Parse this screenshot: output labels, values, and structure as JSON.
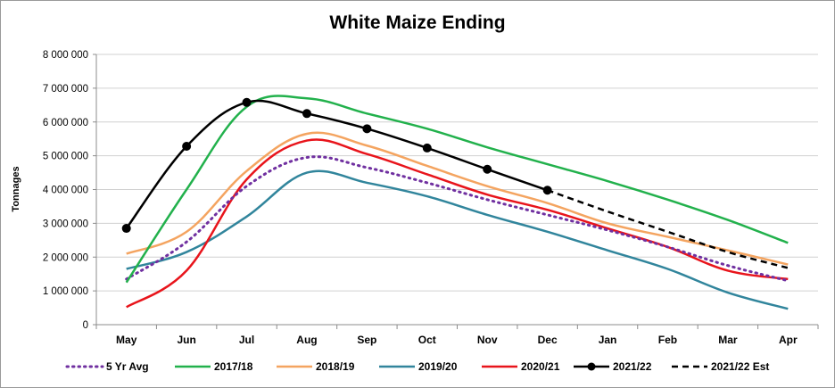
{
  "chart_data": {
    "type": "line",
    "title": "White Maize Ending",
    "xlabel": "",
    "ylabel": "Tonnages",
    "ylim": [
      0,
      8000000
    ],
    "yticks": [
      0,
      1000000,
      2000000,
      3000000,
      4000000,
      5000000,
      6000000,
      7000000,
      8000000
    ],
    "ytick_labels": [
      "0",
      "1 000 000",
      "2 000 000",
      "3 000 000",
      "4 000 000",
      "5 000 000",
      "6 000 000",
      "7 000 000",
      "8 000 000"
    ],
    "categories": [
      "May",
      "Jun",
      "Jul",
      "Aug",
      "Sep",
      "Oct",
      "Nov",
      "Dec",
      "Jan",
      "Feb",
      "Mar",
      "Apr"
    ],
    "grid": "horizontal",
    "legend_position": "bottom",
    "series": [
      {
        "name": "5 Yr Avg",
        "color": "#7030a0",
        "style": "dotted",
        "values": [
          1350000,
          2450000,
          4100000,
          4950000,
          4650000,
          4200000,
          3700000,
          3250000,
          2800000,
          2300000,
          1750000,
          1300000
        ]
      },
      {
        "name": "2017/18",
        "color": "#22b14c",
        "style": "solid",
        "values": [
          1250000,
          4000000,
          6450000,
          6700000,
          6250000,
          5800000,
          5250000,
          4750000,
          4250000,
          3700000,
          3100000,
          2420000
        ]
      },
      {
        "name": "2018/19",
        "color": "#f4a460",
        "style": "solid",
        "values": [
          2100000,
          2750000,
          4550000,
          5650000,
          5300000,
          4700000,
          4100000,
          3600000,
          3000000,
          2600000,
          2200000,
          1780000
        ]
      },
      {
        "name": "2019/20",
        "color": "#31859c",
        "style": "solid",
        "values": [
          1650000,
          2150000,
          3200000,
          4500000,
          4200000,
          3800000,
          3250000,
          2750000,
          2200000,
          1650000,
          950000,
          470000
        ]
      },
      {
        "name": "2020/21",
        "color": "#e8141b",
        "style": "solid",
        "values": [
          520000,
          1600000,
          4300000,
          5450000,
          5050000,
          4450000,
          3850000,
          3400000,
          2850000,
          2300000,
          1600000,
          1350000
        ]
      },
      {
        "name": "2021/22",
        "color": "#000000",
        "style": "solid-marker",
        "values": [
          2850000,
          5280000,
          6580000,
          6250000,
          5800000,
          5230000,
          4600000,
          3980000,
          null,
          null,
          null,
          null
        ]
      },
      {
        "name": "2021/22 Est",
        "color": "#000000",
        "style": "dashed",
        "values": [
          null,
          null,
          null,
          null,
          null,
          null,
          null,
          3980000,
          3350000,
          2750000,
          2150000,
          1680000
        ]
      }
    ]
  }
}
